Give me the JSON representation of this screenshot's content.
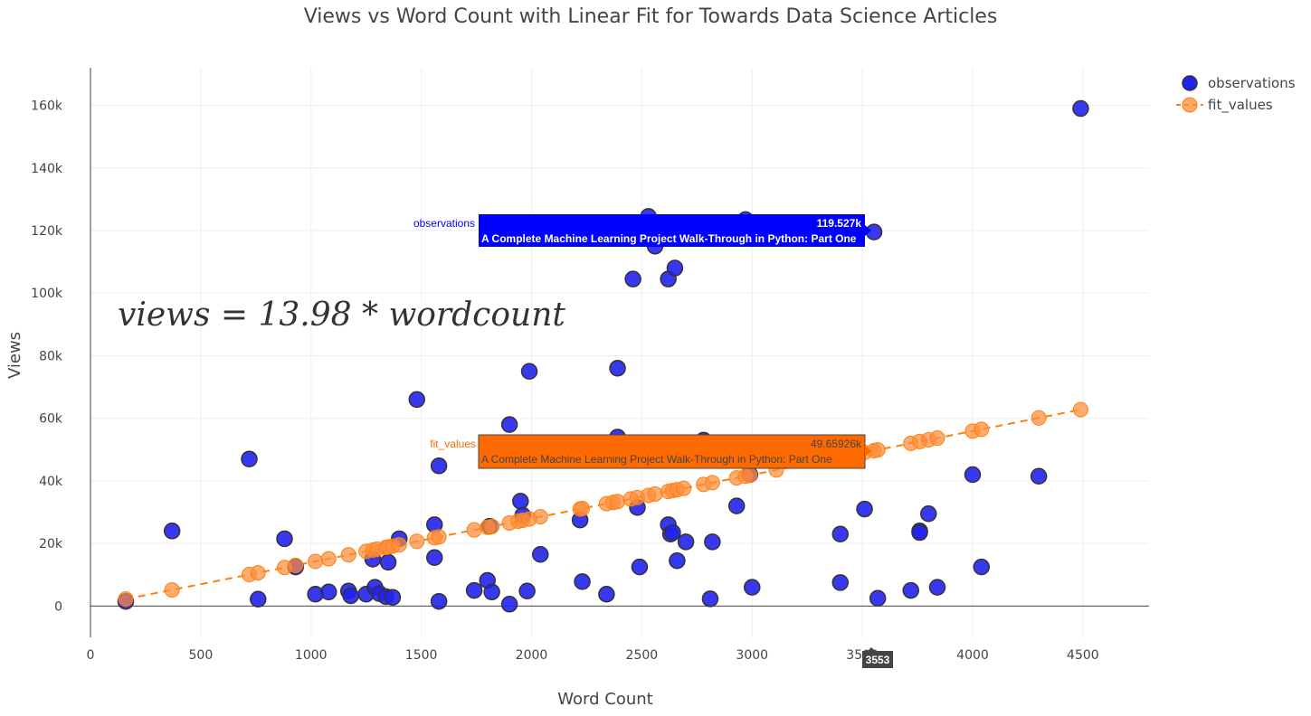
{
  "chart_data": {
    "type": "scatter",
    "title": "Views vs Word Count with Linear Fit for Towards Data Science Articles",
    "xlabel": "Word Count",
    "ylabel": "Views",
    "xlim": [
      0,
      4800
    ],
    "ylim": [
      -10000,
      172000
    ],
    "x_ticks": [
      0,
      500,
      1000,
      1500,
      2000,
      2500,
      3000,
      3500,
      4000,
      4500
    ],
    "x_tick_labels": [
      "0",
      "500",
      "1000",
      "1500",
      "2000",
      "2500",
      "3000",
      "3500",
      "4000",
      "4500"
    ],
    "y_ticks": [
      0,
      20000,
      40000,
      60000,
      80000,
      100000,
      120000,
      140000,
      160000
    ],
    "y_tick_labels": [
      "0",
      "20k",
      "40k",
      "60k",
      "80k",
      "100k",
      "120k",
      "140k",
      "160k"
    ],
    "grid": true,
    "legend_position": "top-right",
    "annotation": "views = 13.98 * wordcount",
    "slope": 13.98,
    "colors": {
      "observations": "#2222ee",
      "fit_values": "#ff8c3a",
      "fit_line": "#ff7f0e",
      "hover_obs": "#0000ff",
      "hover_fit": "#ff6a00"
    },
    "series": [
      {
        "name": "observations",
        "points": [
          [
            160,
            1500
          ],
          [
            370,
            24000
          ],
          [
            720,
            47000
          ],
          [
            760,
            2200
          ],
          [
            880,
            21500
          ],
          [
            930,
            12500
          ],
          [
            1020,
            3800
          ],
          [
            1080,
            4500
          ],
          [
            1170,
            4800
          ],
          [
            1180,
            3300
          ],
          [
            1250,
            3800
          ],
          [
            1280,
            15000
          ],
          [
            1290,
            6000
          ],
          [
            1310,
            4000
          ],
          [
            1340,
            3000
          ],
          [
            1350,
            14000
          ],
          [
            1370,
            2800
          ],
          [
            1400,
            21500
          ],
          [
            1480,
            66000
          ],
          [
            1560,
            26000
          ],
          [
            1560,
            15500
          ],
          [
            1580,
            44800
          ],
          [
            1580,
            1500
          ],
          [
            1740,
            5000
          ],
          [
            1800,
            8200
          ],
          [
            1810,
            25500
          ],
          [
            1820,
            4500
          ],
          [
            1900,
            58000
          ],
          [
            1900,
            600
          ],
          [
            1950,
            33500
          ],
          [
            1960,
            29000
          ],
          [
            1980,
            4800
          ],
          [
            1990,
            75000
          ],
          [
            2040,
            16500
          ],
          [
            2220,
            27500
          ],
          [
            2230,
            7800
          ],
          [
            2340,
            3800
          ],
          [
            2390,
            76000
          ],
          [
            2390,
            54000
          ],
          [
            2460,
            104500
          ],
          [
            2480,
            31500
          ],
          [
            2490,
            12500
          ],
          [
            2530,
            124500
          ],
          [
            2560,
            115000
          ],
          [
            2620,
            26000
          ],
          [
            2620,
            104500
          ],
          [
            2630,
            23000
          ],
          [
            2640,
            23500
          ],
          [
            2650,
            108000
          ],
          [
            2660,
            14500
          ],
          [
            2700,
            20500
          ],
          [
            2780,
            53000
          ],
          [
            2810,
            2300
          ],
          [
            2820,
            20500
          ],
          [
            2930,
            32000
          ],
          [
            2970,
            123500
          ],
          [
            2990,
            42000
          ],
          [
            3000,
            6000
          ],
          [
            3400,
            23000
          ],
          [
            3400,
            7500
          ],
          [
            3510,
            31000
          ],
          [
            3553,
            119527
          ],
          [
            3570,
            2500
          ],
          [
            3720,
            5000
          ],
          [
            3760,
            24000
          ],
          [
            3760,
            23500
          ],
          [
            3800,
            29500
          ],
          [
            3840,
            6000
          ],
          [
            4000,
            42000
          ],
          [
            4040,
            12500
          ],
          [
            4300,
            41500
          ],
          [
            4490,
            159000
          ]
        ]
      },
      {
        "name": "fit_values",
        "x": [
          160,
          370,
          720,
          760,
          880,
          930,
          1020,
          1080,
          1170,
          1250,
          1280,
          1300,
          1340,
          1350,
          1370,
          1400,
          1480,
          1560,
          1580,
          1740,
          1800,
          1820,
          1900,
          1940,
          1960,
          1990,
          2040,
          2220,
          2230,
          2340,
          2370,
          2390,
          2450,
          2480,
          2530,
          2560,
          2620,
          2640,
          2660,
          2690,
          2780,
          2820,
          2930,
          2970,
          2990,
          3110,
          3510,
          3553,
          3570,
          3720,
          3760,
          3800,
          3840,
          4000,
          4040,
          4300,
          4490
        ]
      }
    ]
  },
  "legend": {
    "items": [
      {
        "label": "observations"
      },
      {
        "label": "fit_values"
      }
    ]
  },
  "hover": {
    "observations": {
      "series_label": "observations",
      "value": "119.527k",
      "text": "A Complete Machine Learning Project Walk-Through in Python: Part One"
    },
    "fit_values": {
      "series_label": "fit_values",
      "value": "49.65926k",
      "text": "A Complete Machine Learning Project Walk-Through in Python: Part One"
    },
    "x_value": "3553"
  }
}
